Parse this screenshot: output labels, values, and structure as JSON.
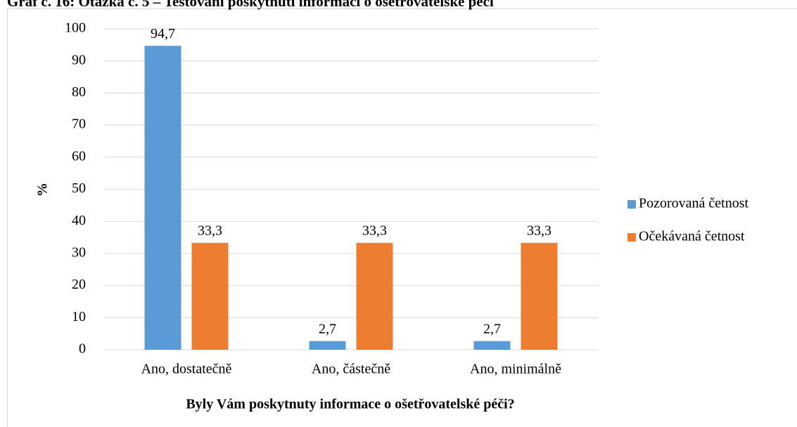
{
  "chart_data": {
    "type": "bar",
    "title": "Graf č. 16: Otázka č. 5 – Testování poskytnutí informací o ošetřovatelské péči",
    "x_label": "Byly Vám poskytnuty informace o ošetřovatelské péči?",
    "y_label": "%",
    "categories": [
      "Ano, dostatečně",
      "Ano, částečně",
      "Ano, minimálně"
    ],
    "series": [
      {
        "name": "Pozorovaná četnost",
        "color": "#5b9bd5",
        "values": [
          94.7,
          2.7,
          2.7
        ],
        "value_labels": [
          "94,7",
          "2,7",
          "2,7"
        ]
      },
      {
        "name": "Očekávaná četnost",
        "color": "#ed7d31",
        "values": [
          33.3,
          33.3,
          33.3
        ],
        "value_labels": [
          "33,3",
          "33,3",
          "33,3"
        ]
      }
    ],
    "ylim": [
      0,
      100
    ],
    "yticks": [
      0,
      10,
      20,
      30,
      40,
      50,
      60,
      70,
      80,
      90,
      100
    ],
    "grid": true,
    "legend": "right"
  }
}
